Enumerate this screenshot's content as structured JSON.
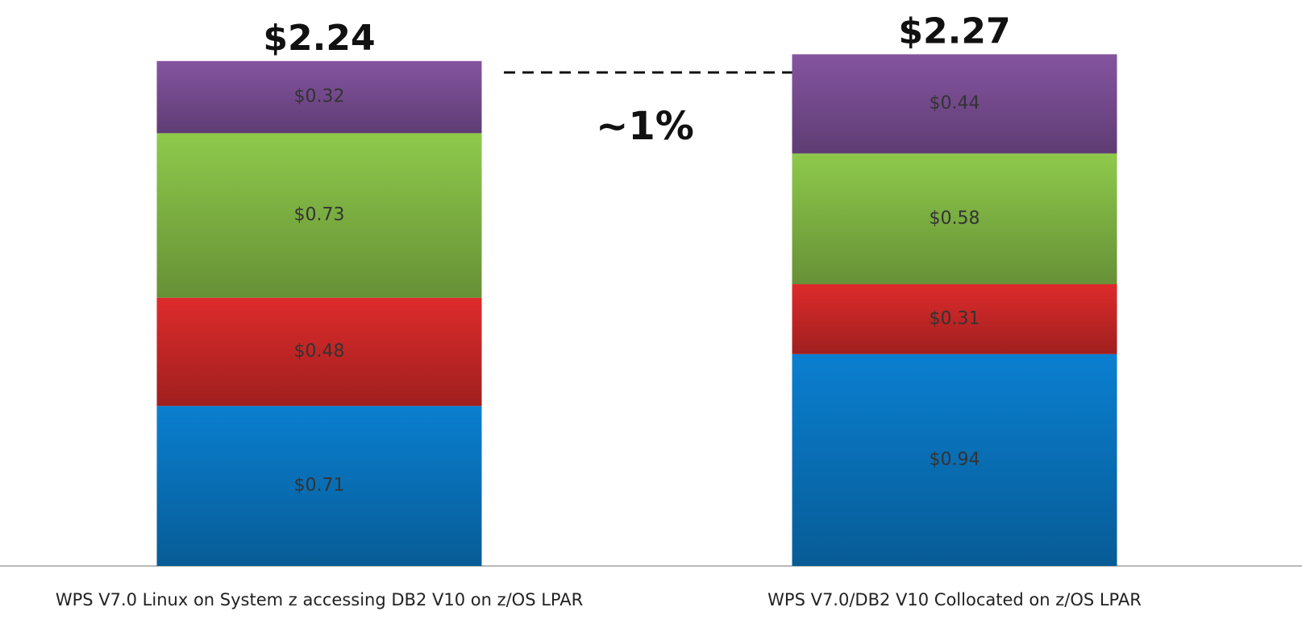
{
  "chart_data": {
    "type": "stacked_bar",
    "categories": [
      "WPS V7.0 Linux on System z accessing DB2 V10 on z/OS LPAR",
      "WPS V7.0/DB2 V10 Collocated on z/OS LPAR"
    ],
    "series": [
      {
        "color": "#0a7fd0",
        "values": [
          0.71,
          0.94
        ],
        "value_labels": [
          "$0.71",
          "$0.94"
        ]
      },
      {
        "color": "#de2b2b",
        "values": [
          0.48,
          0.31
        ],
        "value_labels": [
          "$0.48",
          "$0.31"
        ]
      },
      {
        "color": "#8ec94b",
        "values": [
          0.73,
          0.58
        ],
        "value_labels": [
          "$0.73",
          "$0.58"
        ]
      },
      {
        "color": "#8454a0",
        "values": [
          0.32,
          0.44
        ],
        "value_labels": [
          "$0.32",
          "$0.44"
        ]
      }
    ],
    "total_labels": [
      "$2.24",
      "$2.27"
    ],
    "annotation": "~1%",
    "ylim": [
      0,
      2.4
    ]
  }
}
